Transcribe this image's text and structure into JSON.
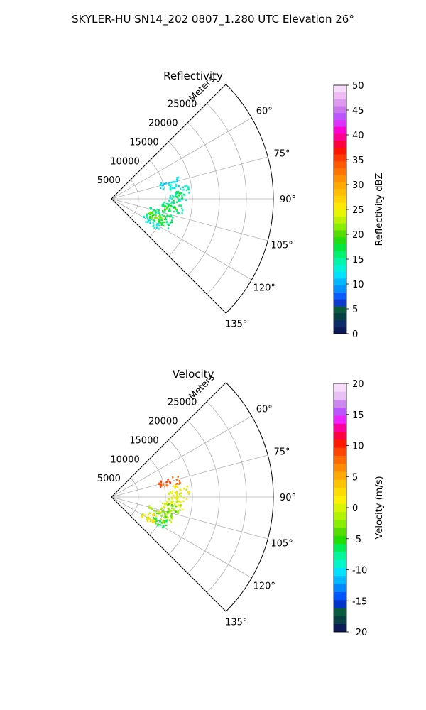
{
  "figure_title": "SKYLER-HU  SN14_202  0807_1.280 UTC Elevation 26°",
  "chart_data": [
    {
      "type": "heatmap",
      "projection": "polar-sector",
      "title": "Reflectivity",
      "radial_label": "Meters",
      "radial_ticks": [
        "5000",
        "10000",
        "15000",
        "20000",
        "25000"
      ],
      "radial_tick_values": [
        5000,
        10000,
        15000,
        20000,
        25000
      ],
      "rlim": [
        0,
        30000
      ],
      "azimuth_range_deg": [
        45,
        135
      ],
      "azimuth_ticks": [
        "60°",
        "75°",
        "90°",
        "105°",
        "120°",
        "135°"
      ],
      "azimuth_tick_values": [
        60,
        75,
        90,
        105,
        120,
        135
      ],
      "grid": true,
      "colorbar": {
        "label": "Reflectivity dBZ",
        "range": [
          0,
          50
        ],
        "ticks": [
          "0",
          "5",
          "10",
          "15",
          "20",
          "25",
          "30",
          "35",
          "40",
          "45",
          "50"
        ]
      },
      "data_regions": [
        {
          "az_range": [
            72,
            80
          ],
          "r_range": [
            9000,
            13000
          ],
          "value": 12
        },
        {
          "az_range": [
            80,
            92
          ],
          "r_range": [
            10500,
            14500
          ],
          "value": 14
        },
        {
          "az_range": [
            84,
            92
          ],
          "r_range": [
            11500,
            13500
          ],
          "value": 17
        },
        {
          "az_range": [
            92,
            103
          ],
          "r_range": [
            9500,
            13500
          ],
          "value": 15
        },
        {
          "az_range": [
            96,
            103
          ],
          "r_range": [
            10000,
            12500
          ],
          "value": 19
        },
        {
          "az_range": [
            103,
            118
          ],
          "r_range": [
            7000,
            12000
          ],
          "value": 16
        },
        {
          "az_range": [
            108,
            118
          ],
          "r_range": [
            7500,
            11000
          ],
          "value": 20
        },
        {
          "az_range": [
            118,
            124
          ],
          "r_range": [
            6500,
            10500
          ],
          "value": 13
        }
      ]
    },
    {
      "type": "heatmap",
      "projection": "polar-sector",
      "title": "Velocity",
      "radial_label": "Meters",
      "radial_ticks": [
        "5000",
        "10000",
        "15000",
        "20000",
        "25000"
      ],
      "radial_tick_values": [
        5000,
        10000,
        15000,
        20000,
        25000
      ],
      "rlim": [
        0,
        30000
      ],
      "azimuth_range_deg": [
        45,
        135
      ],
      "azimuth_ticks": [
        "60°",
        "75°",
        "90°",
        "105°",
        "120°",
        "135°"
      ],
      "azimuth_tick_values": [
        60,
        75,
        90,
        105,
        120,
        135
      ],
      "grid": true,
      "colorbar": {
        "label": "Velocity (m/s)",
        "range": [
          -20,
          20
        ],
        "ticks": [
          "-20",
          "-15",
          "-10",
          "-5",
          "0",
          "5",
          "10",
          "15",
          "20"
        ]
      },
      "data_regions": [
        {
          "az_range": [
            72,
            80
          ],
          "r_range": [
            9000,
            13000
          ],
          "value": 8
        },
        {
          "az_range": [
            80,
            92
          ],
          "r_range": [
            10500,
            14500
          ],
          "value": 1
        },
        {
          "az_range": [
            92,
            103
          ],
          "r_range": [
            9500,
            13500
          ],
          "value": 0
        },
        {
          "az_range": [
            97,
            105
          ],
          "r_range": [
            10500,
            13000
          ],
          "value": -3
        },
        {
          "az_range": [
            103,
            113
          ],
          "r_range": [
            7000,
            12000
          ],
          "value": -2
        },
        {
          "az_range": [
            113,
            120
          ],
          "r_range": [
            7500,
            11000
          ],
          "value": 3
        },
        {
          "az_range": [
            112,
            122
          ],
          "r_range": [
            8500,
            11500
          ],
          "value": -6
        },
        {
          "az_range": [
            118,
            124
          ],
          "r_range": [
            6500,
            9500
          ],
          "value": 1
        }
      ]
    }
  ]
}
